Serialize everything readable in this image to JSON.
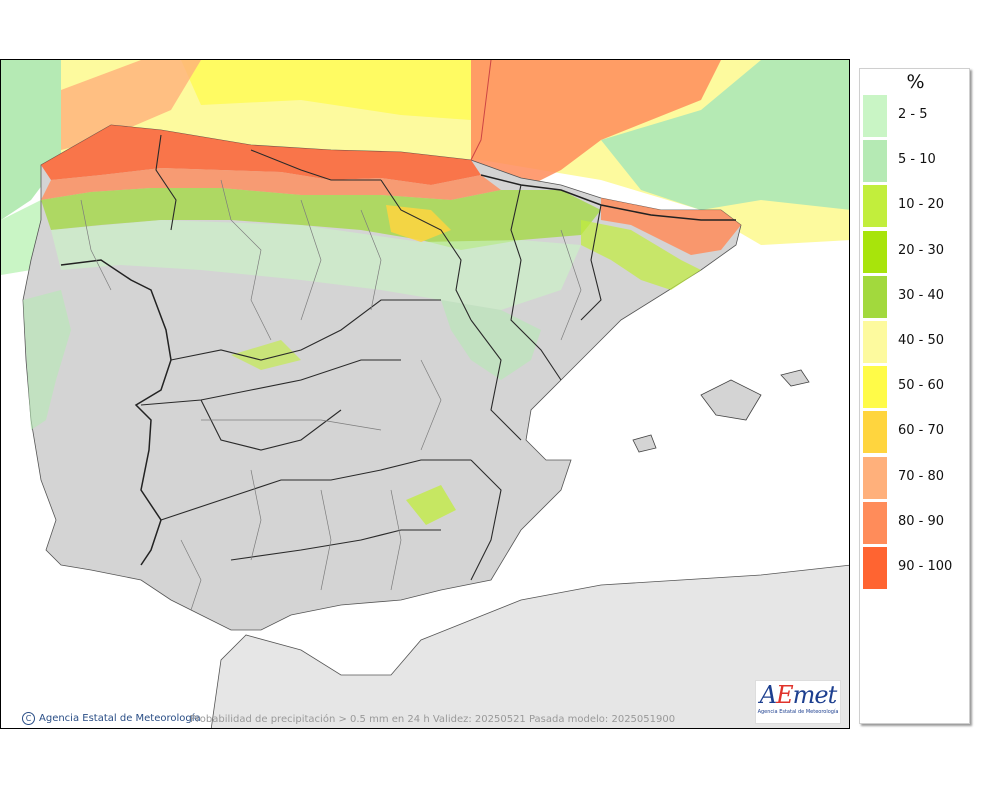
{
  "map": {
    "caption": "Probabilidad de precipitación > 0.5 mm en 24 h Validez: 20250521 Pasada modelo: 2025051900",
    "credit": "Agencia Estatal de Meteorología",
    "copyright_symbol": "C",
    "logo_text_a": "A",
    "logo_text_b": "E",
    "logo_text_c": "met",
    "logo_subtitle": "Agencia Estatal de Meteorología",
    "colors": {
      "sea": "#ffffff",
      "land": "#d4d4d4",
      "africa": "#e6e6e6",
      "border": "#2a2a2a",
      "province": "#7d7d7d"
    }
  },
  "legend": {
    "title": "%",
    "items": [
      {
        "label": "2 - 5",
        "color": "#c9f5c5"
      },
      {
        "label": "5 - 10",
        "color": "#b5eab4"
      },
      {
        "label": "10 - 20",
        "color": "#c2ee3c"
      },
      {
        "label": "20 - 30",
        "color": "#a8e40b"
      },
      {
        "label": "30 - 40",
        "color": "#a2d93d"
      },
      {
        "label": "40 - 50",
        "color": "#fdfa9e"
      },
      {
        "label": "50 - 60",
        "color": "#fffb48"
      },
      {
        "label": "60 - 70",
        "color": "#ffd53e"
      },
      {
        "label": "70 - 80",
        "color": "#ffb07b"
      },
      {
        "label": "80 - 90",
        "color": "#ff8c5a"
      },
      {
        "label": "90 - 100",
        "color": "#ff6431"
      }
    ]
  }
}
